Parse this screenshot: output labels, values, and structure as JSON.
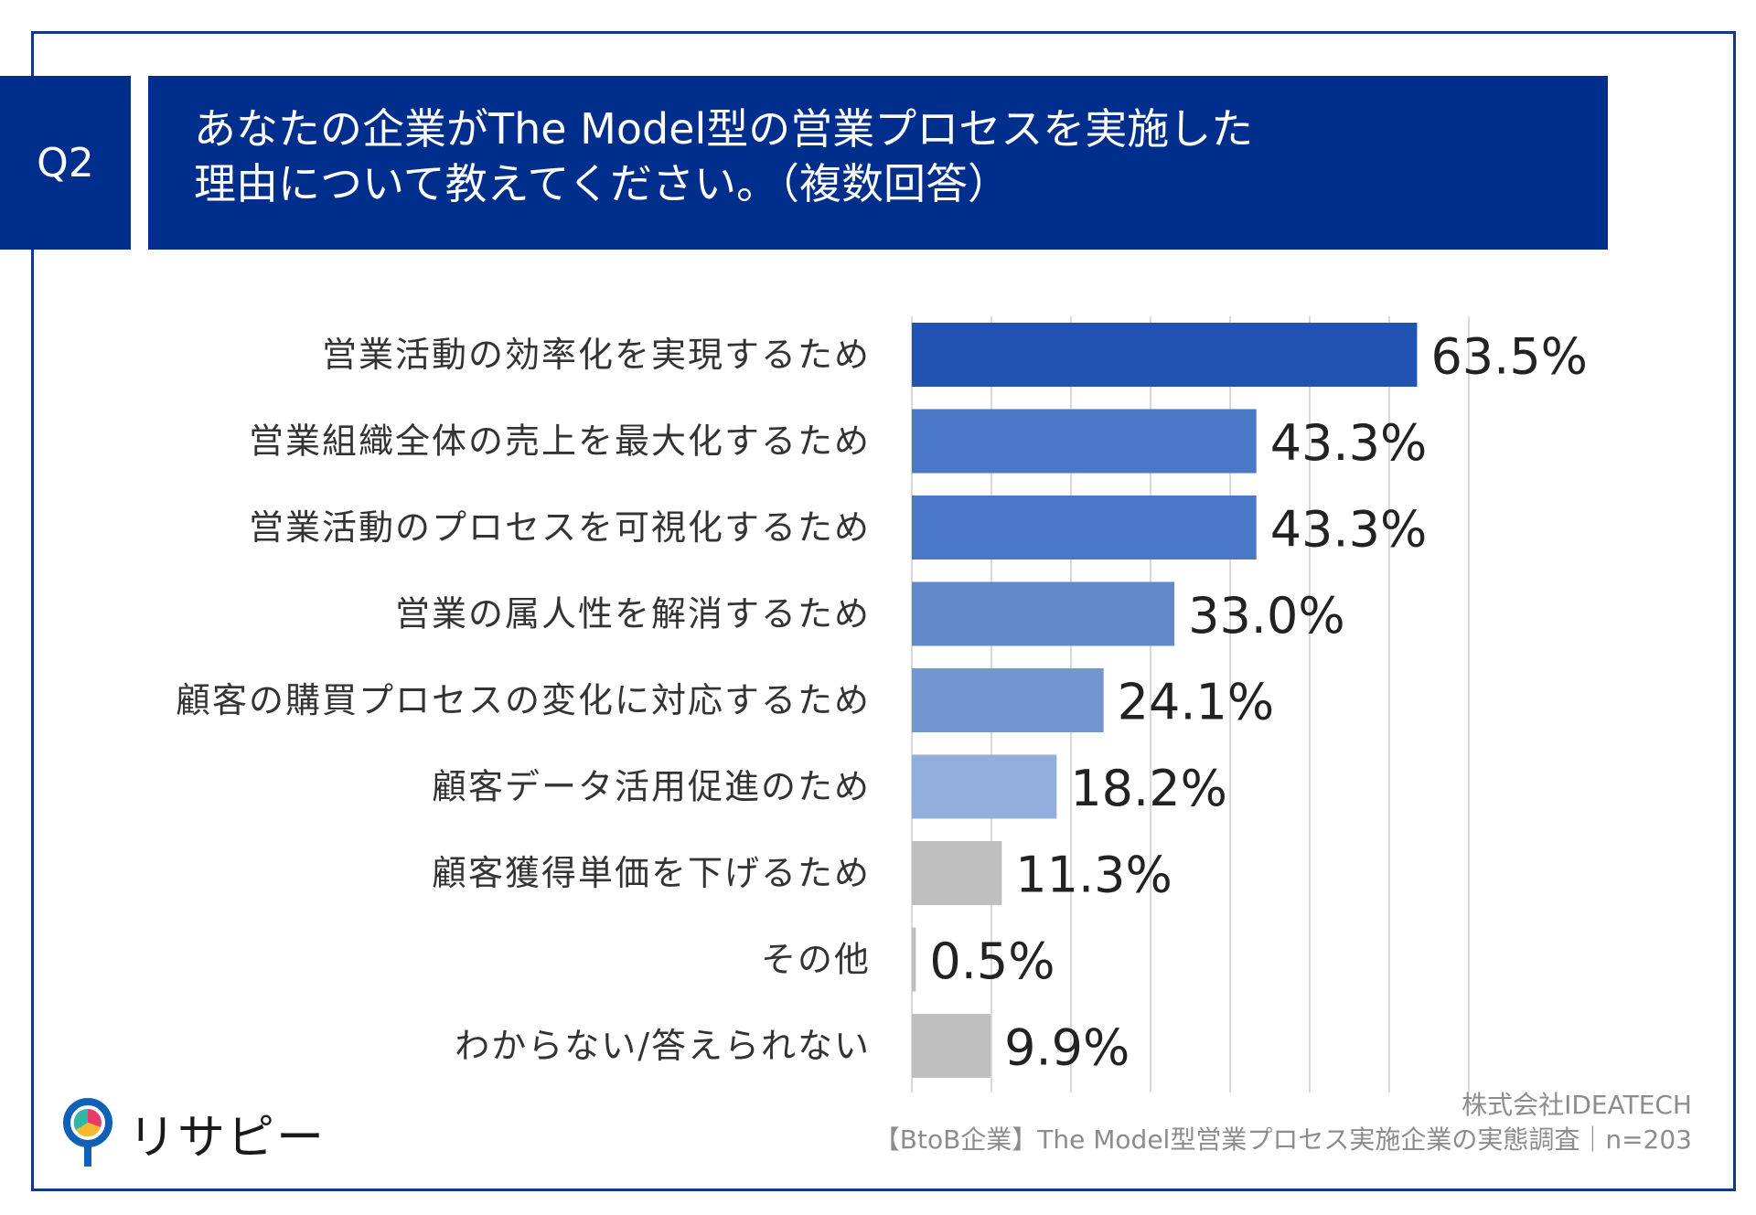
{
  "header": {
    "q_label": "Q2",
    "title_line1": "あなたの企業がThe Model型の営業プロセスを実施した",
    "title_line2": "理由について教えてください。（複数回答）"
  },
  "chart_data": {
    "type": "bar",
    "orientation": "horizontal",
    "title": "",
    "xlabel": "",
    "ylabel": "",
    "xlim": [
      0,
      70
    ],
    "grid": true,
    "categories": [
      "営業活動の効率化を実現するため",
      "営業組織全体の売上を最大化するため",
      "営業活動のプロセスを可視化するため",
      "営業の属人性を解消するため",
      "顧客の購買プロセスの変化に対応するため",
      "顧客データ活用促進のため",
      "顧客獲得単価を下げるため",
      "その他",
      "わからない/答えられない"
    ],
    "values": [
      63.5,
      43.3,
      43.3,
      33.0,
      24.1,
      18.2,
      11.3,
      0.5,
      9.9
    ],
    "value_labels": [
      "63.5%",
      "43.3%",
      "43.3%",
      "33.0%",
      "24.1%",
      "18.2%",
      "11.3%",
      "0.5%",
      "9.9%"
    ],
    "bar_colors": [
      "#2154b2",
      "#4a78c6",
      "#4a78c6",
      "#6389cc",
      "#7396d2",
      "#91aedc",
      "#bfbfbf",
      "#bfbfbf",
      "#bfbfbf"
    ]
  },
  "source": {
    "company": "株式会社IDEATECH",
    "survey": "【BtoB企業】The Model型営業プロセス実施企業の実態調査｜n=203"
  },
  "logo": {
    "text": "リサピー"
  }
}
